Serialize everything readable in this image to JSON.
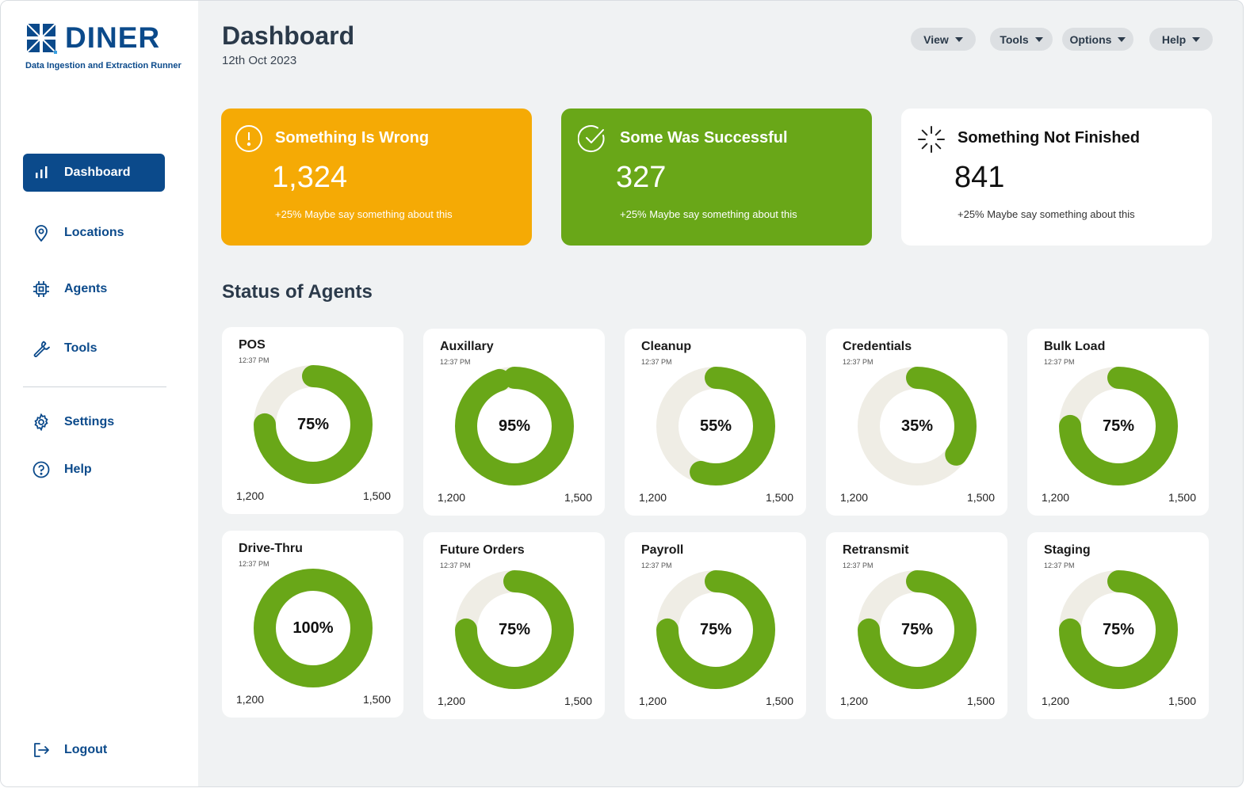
{
  "brand": {
    "name": "DINER",
    "tagline": "Data Ingestion and Extraction Runner",
    "color": "#0b4a8b"
  },
  "sidebar": {
    "items": [
      {
        "label": "Dashboard",
        "icon": "bar-chart-icon",
        "active": true
      },
      {
        "label": "Locations",
        "icon": "map-pin-icon"
      },
      {
        "label": "Agents",
        "icon": "chip-icon"
      },
      {
        "label": "Tools",
        "icon": "wrench-icon"
      },
      {
        "label": "Settings",
        "icon": "gear-icon"
      },
      {
        "label": "Help",
        "icon": "help-circle-icon"
      },
      {
        "label": "Logout",
        "icon": "logout-icon"
      }
    ]
  },
  "header": {
    "title": "Dashboard",
    "date": "12th Oct 2023",
    "menus": [
      "View",
      "Tools",
      "Options",
      "Help"
    ]
  },
  "summary_cards": [
    {
      "title": "Something Is Wrong",
      "value": "1,324",
      "sub": "+25% Maybe say something about this",
      "color": "#f5aa05",
      "icon": "warning-circle-icon"
    },
    {
      "title": "Some Was Successful",
      "value": "327",
      "sub": "+25% Maybe say something about this",
      "color": "#69a718",
      "icon": "check-circle-icon"
    },
    {
      "title": "Something Not Finished",
      "value": "841",
      "sub": "+25% Maybe say something about this",
      "color": "#ffffff",
      "icon": "loading-spinner-icon"
    }
  ],
  "section": {
    "title": "Status of Agents"
  },
  "colors": {
    "progress": "#69a718",
    "track": "#efede5"
  },
  "agents": [
    {
      "name": "POS",
      "time": "12:37 PM",
      "percent": 75,
      "percent_label": "75%",
      "min": "1,200",
      "max": "1,500"
    },
    {
      "name": "Auxillary",
      "time": "12:37 PM",
      "percent": 95,
      "percent_label": "95%",
      "min": "1,200",
      "max": "1,500"
    },
    {
      "name": "Cleanup",
      "time": "12:37 PM",
      "percent": 55,
      "percent_label": "55%",
      "min": "1,200",
      "max": "1,500"
    },
    {
      "name": "Credentials",
      "time": "12:37 PM",
      "percent": 35,
      "percent_label": "35%",
      "min": "1,200",
      "max": "1,500"
    },
    {
      "name": "Bulk Load",
      "time": "12:37 PM",
      "percent": 75,
      "percent_label": "75%",
      "min": "1,200",
      "max": "1,500"
    },
    {
      "name": "Drive-Thru",
      "time": "12:37 PM",
      "percent": 100,
      "percent_label": "100%",
      "min": "1,200",
      "max": "1,500"
    },
    {
      "name": "Future Orders",
      "time": "12:37 PM",
      "percent": 75,
      "percent_label": "75%",
      "min": "1,200",
      "max": "1,500"
    },
    {
      "name": "Payroll",
      "time": "12:37 PM",
      "percent": 75,
      "percent_label": "75%",
      "min": "1,200",
      "max": "1,500"
    },
    {
      "name": "Retransmit",
      "time": "12:37 PM",
      "percent": 75,
      "percent_label": "75%",
      "min": "1,200",
      "max": "1,500"
    },
    {
      "name": "Staging",
      "time": "12:37 PM",
      "percent": 75,
      "percent_label": "75%",
      "min": "1,200",
      "max": "1,500"
    }
  ]
}
